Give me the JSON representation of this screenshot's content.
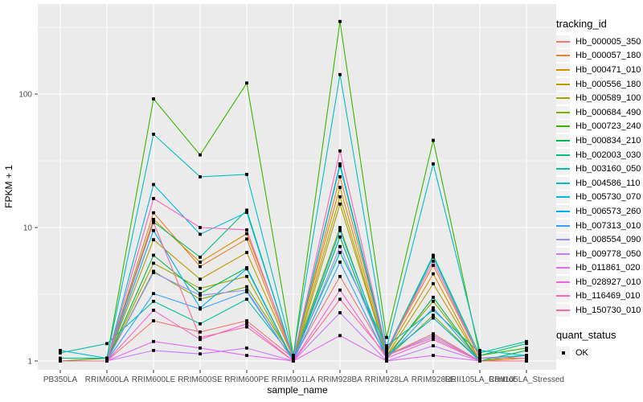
{
  "chart": {
    "xlabel": "sample_name",
    "ylabel": "FPKM + 1",
    "legend_title": "tracking_id",
    "legend2_title": "quant_status",
    "quant_status_label": "OK"
  },
  "chart_data": {
    "type": "line",
    "title": "",
    "xlabel": "sample_name",
    "ylabel": "FPKM + 1",
    "yscale": "log10",
    "ylim": [
      0.85,
      475
    ],
    "yticks": [
      1,
      10,
      100
    ],
    "ytick_labels": [
      "1",
      "10",
      "100"
    ],
    "yminor": [
      3.1623,
      31.623,
      316.23
    ],
    "grid": true,
    "panel_bg": "#EBEBEB",
    "grid_color": "#FFFFFF",
    "tick_color": "#333333",
    "tick_label_color": "#4D4D4D",
    "marker": "square",
    "marker_color": "#000000",
    "legend_position": "right",
    "categories": [
      "PB350LA",
      "RRIM600LA",
      "RRIM600LE",
      "RRIM600SE",
      "RRIM600PE",
      "RRIM901LA",
      "RRIM928BA",
      "RRIM928LA",
      "RRIM928LE",
      "RRII105LA_Control",
      "RRII105LA_Stressed"
    ],
    "series": [
      {
        "name": "Hb_000005_350",
        "color": "#F8766D",
        "values": [
          1.0,
          1.0,
          2.0,
          1.65,
          2.0,
          1.05,
          4.3,
          1.1,
          1.6,
          1.0,
          1.0
        ]
      },
      {
        "name": "Hb_000057_180",
        "color": "#EA8331",
        "values": [
          1.0,
          1.0,
          12.9,
          5.1,
          8.2,
          1.05,
          24.0,
          1.2,
          5.2,
          1.05,
          1.05
        ]
      },
      {
        "name": "Hb_000471_010",
        "color": "#D89000",
        "values": [
          1.0,
          1.0,
          11.5,
          5.5,
          9.0,
          1.1,
          20.0,
          1.15,
          4.5,
          1.0,
          1.05
        ]
      },
      {
        "name": "Hb_000556_180",
        "color": "#C09B00",
        "values": [
          1.0,
          1.0,
          8.1,
          4.1,
          6.5,
          1.05,
          17.0,
          1.1,
          3.8,
          1.0,
          1.0
        ]
      },
      {
        "name": "Hb_000589_100",
        "color": "#A3A500",
        "values": [
          1.0,
          1.0,
          5.4,
          3.5,
          4.3,
          1.0,
          15.0,
          1.1,
          2.8,
          1.0,
          1.0
        ]
      },
      {
        "name": "Hb_000684_490",
        "color": "#7CAE00",
        "values": [
          1.0,
          1.0,
          4.7,
          2.9,
          3.6,
          1.05,
          10.0,
          1.05,
          2.2,
          1.0,
          1.1
        ]
      },
      {
        "name": "Hb_000723_240",
        "color": "#39B600",
        "values": [
          1.0,
          1.05,
          92.0,
          35.0,
          121.0,
          1.1,
          350.0,
          1.5,
          45.0,
          1.1,
          1.25
        ]
      },
      {
        "name": "Hb_000834_210",
        "color": "#00BB4E",
        "values": [
          1.0,
          1.0,
          6.2,
          3.2,
          5.0,
          1.0,
          8.5,
          1.05,
          3.0,
          1.0,
          1.2
        ]
      },
      {
        "name": "Hb_002003_030",
        "color": "#00BF7D",
        "values": [
          1.05,
          1.05,
          11.0,
          6.0,
          13.5,
          1.05,
          30.0,
          1.2,
          6.2,
          1.1,
          1.35
        ]
      },
      {
        "name": "Hb_003160_050",
        "color": "#00C1A3",
        "values": [
          1.15,
          1.35,
          2.8,
          1.9,
          2.9,
          1.05,
          6.5,
          1.3,
          2.4,
          1.15,
          1.4
        ]
      },
      {
        "name": "Hb_004586_110",
        "color": "#00BFC4",
        "values": [
          1.2,
          1.05,
          50.0,
          24.0,
          25.0,
          1.1,
          140.0,
          1.25,
          30.0,
          1.2,
          1.1
        ]
      },
      {
        "name": "Hb_005730_070",
        "color": "#00BAE0",
        "values": [
          1.0,
          1.0,
          21.0,
          8.9,
          13.0,
          1.05,
          29.0,
          1.15,
          6.0,
          1.05,
          1.1
        ]
      },
      {
        "name": "Hb_006573_260",
        "color": "#00B0F6",
        "values": [
          1.0,
          1.0,
          9.5,
          2.5,
          4.9,
          1.0,
          9.5,
          1.1,
          2.1,
          1.0,
          1.0
        ]
      },
      {
        "name": "Hb_007313_010",
        "color": "#35A2FF",
        "values": [
          1.0,
          1.0,
          3.2,
          2.45,
          3.3,
          1.0,
          5.5,
          1.05,
          2.5,
          1.0,
          1.0
        ]
      },
      {
        "name": "Hb_008554_090",
        "color": "#9590FF",
        "values": [
          1.0,
          1.0,
          4.6,
          3.1,
          3.4,
          1.0,
          7.2,
          1.1,
          1.55,
          1.0,
          1.0
        ]
      },
      {
        "name": "Hb_009778_050",
        "color": "#C77CFF",
        "values": [
          1.0,
          1.0,
          1.2,
          1.13,
          1.25,
          1.0,
          2.3,
          1.0,
          1.3,
          1.0,
          1.0
        ]
      },
      {
        "name": "Hb_011861_020",
        "color": "#E76BF3",
        "values": [
          1.0,
          1.0,
          1.4,
          1.25,
          1.1,
          1.0,
          1.55,
          1.0,
          1.1,
          1.0,
          1.0
        ]
      },
      {
        "name": "Hb_028927_010",
        "color": "#FA62DB",
        "values": [
          1.0,
          1.0,
          2.4,
          1.45,
          1.9,
          1.0,
          3.4,
          1.05,
          1.45,
          1.0,
          1.0
        ]
      },
      {
        "name": "Hb_116469_010",
        "color": "#FF62BC",
        "values": [
          1.0,
          1.0,
          16.5,
          10.0,
          9.6,
          1.05,
          37.5,
          1.2,
          5.6,
          1.05,
          1.05
        ]
      },
      {
        "name": "Hb_150730_010",
        "color": "#FF6A98",
        "values": [
          1.0,
          1.0,
          10.9,
          1.5,
          1.8,
          1.0,
          2.9,
          1.1,
          1.5,
          1.0,
          1.0
        ]
      }
    ]
  }
}
